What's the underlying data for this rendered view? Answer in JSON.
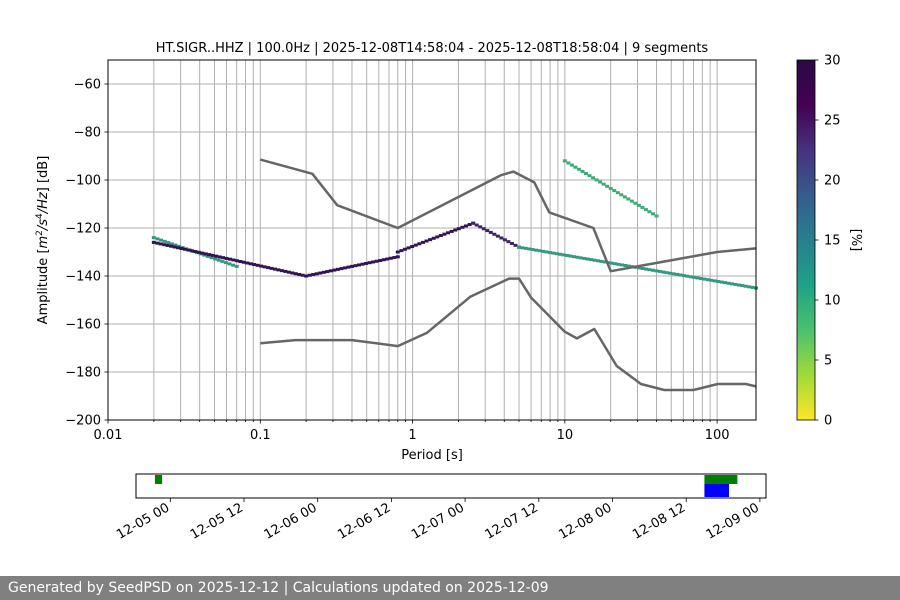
{
  "chart_data": {
    "type": "heatmap",
    "title": "HT.SIGR..HHZ | 100.0Hz | 2025-12-08T14:58:04 - 2025-12-08T18:58:04 | 9 segments",
    "xlabel": "Period [s]",
    "ylabel": "Amplitude [m²/s⁴/Hz] [dB]",
    "xscale": "log",
    "xlim": [
      0.01,
      180
    ],
    "ylim": [
      -200,
      -50
    ],
    "xticks": [
      {
        "value": 0.01,
        "label": "0.01"
      },
      {
        "value": 0.1,
        "label": "0.1"
      },
      {
        "value": 1,
        "label": "1"
      },
      {
        "value": 10,
        "label": "10"
      },
      {
        "value": 100,
        "label": "100"
      }
    ],
    "yticks": [
      {
        "value": -60,
        "label": "−60"
      },
      {
        "value": -80,
        "label": "−80"
      },
      {
        "value": -100,
        "label": "−100"
      },
      {
        "value": -120,
        "label": "−120"
      },
      {
        "value": -140,
        "label": "−140"
      },
      {
        "value": -160,
        "label": "−160"
      },
      {
        "value": -180,
        "label": "−180"
      },
      {
        "value": -200,
        "label": "−200"
      }
    ],
    "grid": true,
    "psd_bands": [
      {
        "period": [
          0.02,
          0.07
        ],
        "db": [
          -124,
          -136
        ],
        "percent": 12
      },
      {
        "period": [
          0.02,
          0.2
        ],
        "db": [
          -126,
          -140
        ],
        "percent": 28
      },
      {
        "period": [
          0.2,
          0.8
        ],
        "db": [
          -140,
          -132
        ],
        "percent": 28
      },
      {
        "period": [
          0.8,
          2.5
        ],
        "db": [
          -130,
          -118
        ],
        "percent": 28
      },
      {
        "period": [
          2.5,
          5
        ],
        "db": [
          -118,
          -128
        ],
        "percent": 25
      },
      {
        "period": [
          5,
          180
        ],
        "db": [
          -128,
          -145
        ],
        "percent": 12
      },
      {
        "period": [
          10,
          40
        ],
        "db": [
          -92,
          -115
        ],
        "percent": 10
      }
    ],
    "noise_models": [
      {
        "name": "high",
        "points": [
          [
            0.1,
            -91.5
          ],
          [
            0.22,
            -97.4
          ],
          [
            0.32,
            -110.5
          ],
          [
            0.8,
            -120
          ],
          [
            3.8,
            -98
          ],
          [
            4.6,
            -96.5
          ],
          [
            6.3,
            -101
          ],
          [
            7.9,
            -113.5
          ],
          [
            15.4,
            -120
          ],
          [
            20,
            -138
          ],
          [
            100,
            -130
          ],
          [
            180,
            -128.5
          ]
        ]
      },
      {
        "name": "low",
        "points": [
          [
            0.1,
            -168
          ],
          [
            0.17,
            -166.7
          ],
          [
            0.4,
            -166.7
          ],
          [
            0.8,
            -169.2
          ],
          [
            1.24,
            -163.7
          ],
          [
            2.4,
            -148.6
          ],
          [
            4.3,
            -141.1
          ],
          [
            5.0,
            -141.1
          ],
          [
            6.0,
            -149
          ],
          [
            10,
            -163.2
          ],
          [
            12,
            -166
          ],
          [
            15.6,
            -162.1
          ],
          [
            21.9,
            -177.5
          ],
          [
            31.6,
            -185
          ],
          [
            45,
            -187.5
          ],
          [
            70,
            -187.5
          ],
          [
            101,
            -185
          ],
          [
            154,
            -185
          ],
          [
            180,
            -186
          ]
        ]
      }
    ],
    "colorbar": {
      "label": "[%]",
      "min": 0,
      "max": 30,
      "ticks": [
        "0",
        "5",
        "10",
        "15",
        "20",
        "25",
        "30"
      ]
    },
    "timeline": {
      "tick_labels": [
        "12-05 00",
        "12-05 12",
        "12-06 00",
        "12-06 12",
        "12-07 00",
        "12-07 12",
        "12-08 00",
        "12-08 12",
        "12-09 00"
      ],
      "segments_green": [
        [
          "2025-12-04 21:30",
          "2025-12-04 22:40"
        ],
        [
          "2025-12-08 14:58",
          "2025-12-08 20:20"
        ]
      ],
      "segments_blue": [
        [
          "2025-12-08 14:58",
          "2025-12-08 18:58"
        ]
      ]
    }
  },
  "footer": {
    "text": "Generated by SeedPSD on 2025-12-12 | Calculations updated on 2025-12-09"
  }
}
